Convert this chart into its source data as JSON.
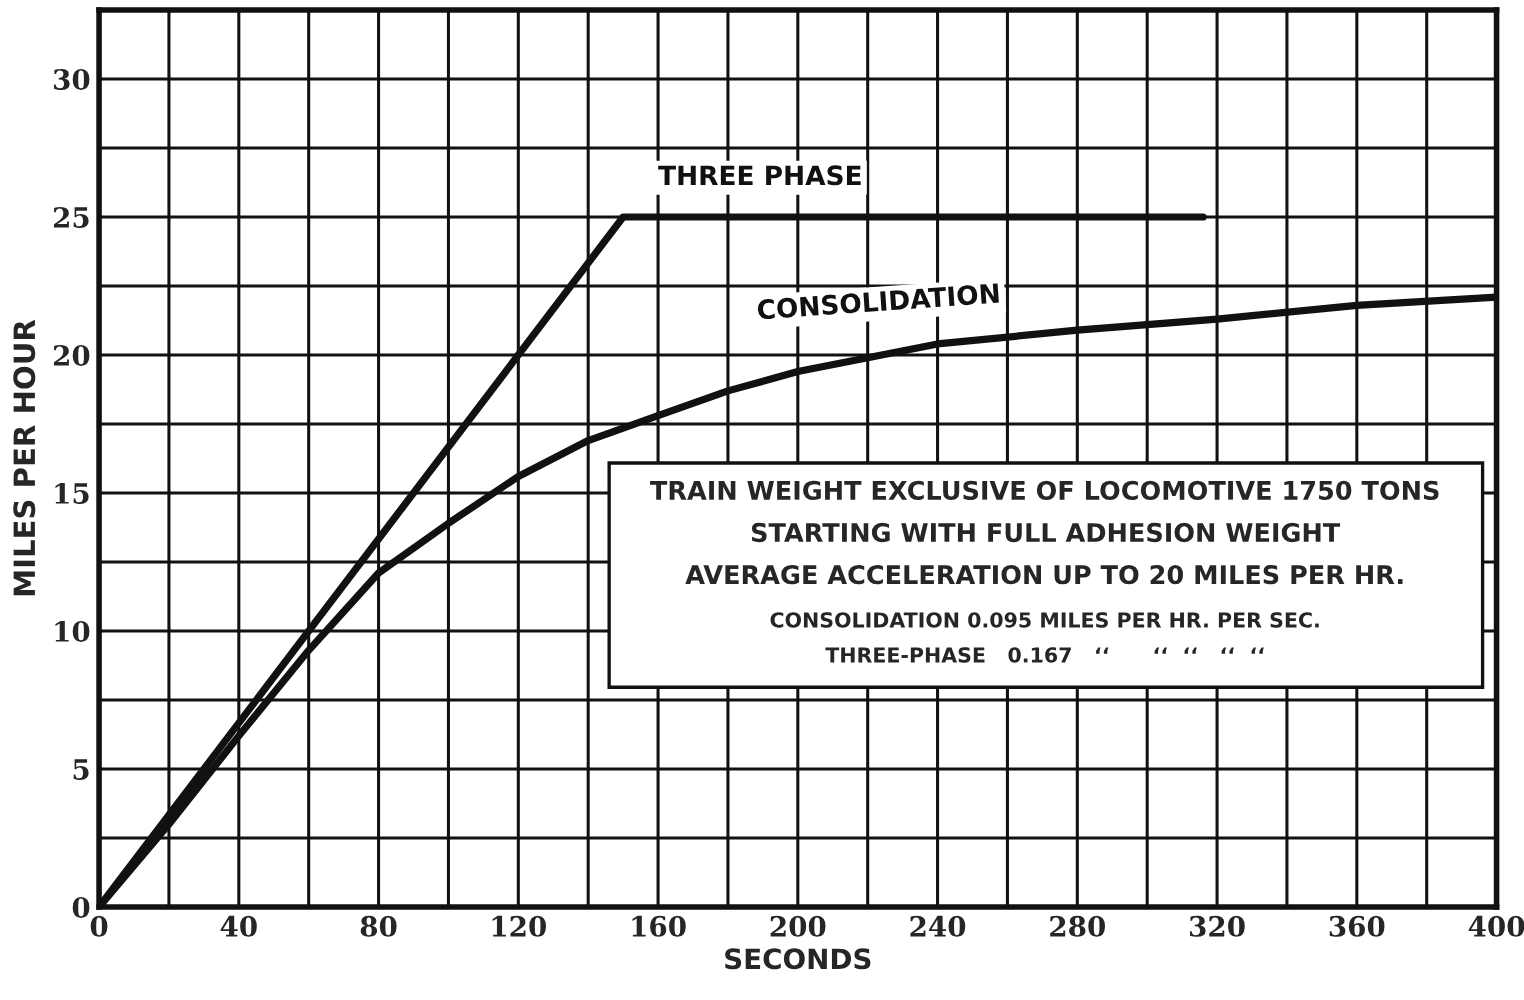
{
  "chart_data": {
    "type": "line",
    "xlabel": "SECONDS",
    "ylabel": "MILES PER HOUR",
    "series": [
      {
        "name": "THREE PHASE",
        "color": "#111111",
        "x": [
          0,
          150,
          316
        ],
        "values": [
          0,
          25,
          25
        ]
      },
      {
        "name": "CONSOLIDATION",
        "color": "#111111",
        "x": [
          0,
          20,
          40,
          60,
          80,
          100,
          120,
          140,
          160,
          180,
          200,
          220,
          240,
          280,
          320,
          360,
          400
        ],
        "values": [
          0,
          3,
          6.2,
          9.3,
          12.1,
          13.9,
          15.6,
          16.9,
          17.8,
          18.7,
          19.4,
          19.9,
          20.4,
          20.9,
          21.3,
          21.8,
          22.1
        ]
      }
    ],
    "xlim": [
      0,
      400
    ],
    "ylim": [
      0,
      32.5
    ],
    "xticks": [
      0,
      {
        "value": 20,
        "label": null
      },
      40,
      {
        "value": 60,
        "label": null
      },
      80,
      {
        "value": 100,
        "label": null
      },
      120,
      {
        "value": 140,
        "label": null
      },
      160,
      {
        "value": 180,
        "label": null
      },
      200,
      {
        "value": 220,
        "label": null
      },
      240,
      {
        "value": 260,
        "label": null
      },
      280,
      {
        "value": 300,
        "label": null
      },
      320,
      {
        "value": 340,
        "label": null
      },
      360,
      {
        "value": 380,
        "label": null
      },
      400
    ],
    "yticks": [
      0,
      {
        "value": 2.5,
        "label": null
      },
      5,
      {
        "value": 7.5,
        "label": null
      },
      10,
      {
        "value": 12.5,
        "label": null
      },
      15,
      {
        "value": 17.5,
        "label": null
      },
      20,
      {
        "value": 22.5,
        "label": null
      },
      25,
      {
        "value": 27.5,
        "label": null
      },
      30
    ],
    "grid": true,
    "legend": false,
    "marker": "none",
    "line_style": "solid",
    "annotations": [
      "TRAIN WEIGHT EXCLUSIVE OF LOCOMOTIVE 1750 TONS",
      "STARTING WITH FULL ADHESION WEIGHT",
      "AVERAGE ACCELERATION UP TO 20 MILES PER HR.",
      "CONSOLIDATION 0.095 MILES PER HR. PER SEC.",
      "THREE-PHASE   0.167   ‘‘      ‘‘  ‘‘   ‘‘  ‘‘"
    ]
  }
}
